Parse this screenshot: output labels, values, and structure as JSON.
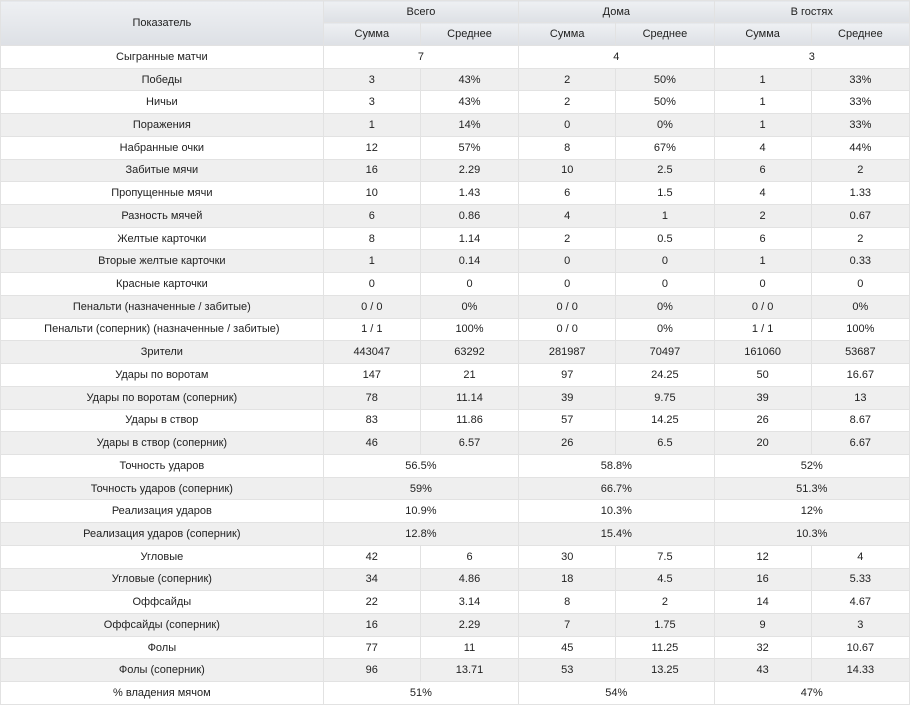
{
  "header": {
    "indicator": "Показатель",
    "groups": [
      "Всего",
      "Дома",
      "В гостях"
    ],
    "sub": [
      "Сумма",
      "Среднее"
    ]
  },
  "rows": [
    {
      "label": "Сыгранные матчи",
      "merged": true,
      "v": [
        "7",
        "4",
        "3"
      ]
    },
    {
      "label": "Победы",
      "v": [
        "3",
        "43%",
        "2",
        "50%",
        "1",
        "33%"
      ]
    },
    {
      "label": "Ничьи",
      "v": [
        "3",
        "43%",
        "2",
        "50%",
        "1",
        "33%"
      ]
    },
    {
      "label": "Поражения",
      "v": [
        "1",
        "14%",
        "0",
        "0%",
        "1",
        "33%"
      ]
    },
    {
      "label": "Набранные очки",
      "v": [
        "12",
        "57%",
        "8",
        "67%",
        "4",
        "44%"
      ]
    },
    {
      "label": "Забитые мячи",
      "v": [
        "16",
        "2.29",
        "10",
        "2.5",
        "6",
        "2"
      ]
    },
    {
      "label": "Пропущенные мячи",
      "v": [
        "10",
        "1.43",
        "6",
        "1.5",
        "4",
        "1.33"
      ]
    },
    {
      "label": "Разность мячей",
      "v": [
        "6",
        "0.86",
        "4",
        "1",
        "2",
        "0.67"
      ]
    },
    {
      "label": "Желтые карточки",
      "v": [
        "8",
        "1.14",
        "2",
        "0.5",
        "6",
        "2"
      ]
    },
    {
      "label": "Вторые желтые карточки",
      "v": [
        "1",
        "0.14",
        "0",
        "0",
        "1",
        "0.33"
      ]
    },
    {
      "label": "Красные карточки",
      "v": [
        "0",
        "0",
        "0",
        "0",
        "0",
        "0"
      ]
    },
    {
      "label": "Пенальти (назначенные / забитые)",
      "v": [
        "0 / 0",
        "0%",
        "0 / 0",
        "0%",
        "0 / 0",
        "0%"
      ]
    },
    {
      "label": "Пенальти (соперник) (назначенные / забитые)",
      "v": [
        "1 / 1",
        "100%",
        "0 / 0",
        "0%",
        "1 / 1",
        "100%"
      ]
    },
    {
      "label": "Зрители",
      "v": [
        "443047",
        "63292",
        "281987",
        "70497",
        "161060",
        "53687"
      ]
    },
    {
      "label": "Удары по воротам",
      "v": [
        "147",
        "21",
        "97",
        "24.25",
        "50",
        "16.67"
      ]
    },
    {
      "label": "Удары по воротам (соперник)",
      "v": [
        "78",
        "11.14",
        "39",
        "9.75",
        "39",
        "13"
      ]
    },
    {
      "label": "Удары в створ",
      "v": [
        "83",
        "11.86",
        "57",
        "14.25",
        "26",
        "8.67"
      ]
    },
    {
      "label": "Удары в створ (соперник)",
      "v": [
        "46",
        "6.57",
        "26",
        "6.5",
        "20",
        "6.67"
      ]
    },
    {
      "label": "Точность ударов",
      "merged": true,
      "v": [
        "56.5%",
        "58.8%",
        "52%"
      ]
    },
    {
      "label": "Точность ударов (соперник)",
      "merged": true,
      "v": [
        "59%",
        "66.7%",
        "51.3%"
      ]
    },
    {
      "label": "Реализация ударов",
      "merged": true,
      "v": [
        "10.9%",
        "10.3%",
        "12%"
      ]
    },
    {
      "label": "Реализация ударов (соперник)",
      "merged": true,
      "v": [
        "12.8%",
        "15.4%",
        "10.3%"
      ]
    },
    {
      "label": "Угловые",
      "v": [
        "42",
        "6",
        "30",
        "7.5",
        "12",
        "4"
      ]
    },
    {
      "label": "Угловые (соперник)",
      "v": [
        "34",
        "4.86",
        "18",
        "4.5",
        "16",
        "5.33"
      ]
    },
    {
      "label": "Оффсайды",
      "v": [
        "22",
        "3.14",
        "8",
        "2",
        "14",
        "4.67"
      ]
    },
    {
      "label": "Оффсайды (соперник)",
      "v": [
        "16",
        "2.29",
        "7",
        "1.75",
        "9",
        "3"
      ]
    },
    {
      "label": "Фолы",
      "v": [
        "77",
        "11",
        "45",
        "11.25",
        "32",
        "10.67"
      ]
    },
    {
      "label": "Фолы (соперник)",
      "v": [
        "96",
        "13.71",
        "53",
        "13.25",
        "43",
        "14.33"
      ]
    },
    {
      "label": "% владения мячом",
      "merged": true,
      "v": [
        "51%",
        "54%",
        "47%"
      ]
    }
  ]
}
